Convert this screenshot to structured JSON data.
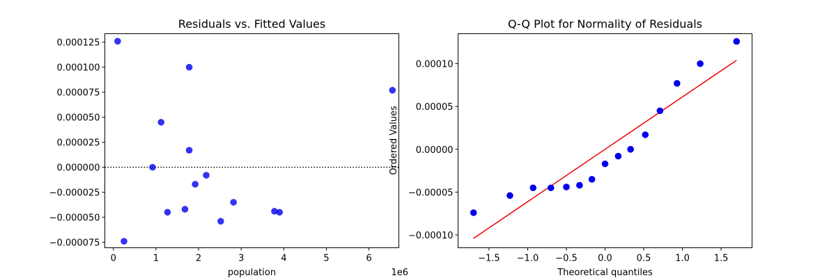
{
  "chart_data": [
    {
      "type": "scatter",
      "title": "Residuals vs. Fitted Values",
      "xlabel": "population",
      "ylabel": "",
      "x_offset_label": "1e6",
      "xlim": [
        -0.2,
        6.7
      ],
      "ylim": [
        -8.05e-05,
        0.0001335
      ],
      "xticks": [
        0,
        1,
        2,
        3,
        4,
        5,
        6
      ],
      "xtick_labels": [
        "0",
        "1",
        "2",
        "3",
        "4",
        "5",
        "6"
      ],
      "yticks": [
        -7.5e-05,
        -5e-05,
        -2.5e-05,
        0,
        2.5e-05,
        5e-05,
        7.5e-05,
        0.0001,
        0.000125
      ],
      "ytick_labels": [
        "−0.000075",
        "−0.000050",
        "−0.000025",
        "0.000000",
        "0.000025",
        "0.000050",
        "0.000075",
        "0.000100",
        "0.000125"
      ],
      "reference_line": {
        "y": 0,
        "style": "dotted",
        "color": "#000000"
      },
      "marker_color": "#0000ee",
      "points": [
        {
          "x": 0.1,
          "y": 0.000126
        },
        {
          "x": 0.25,
          "y": -7.4e-05
        },
        {
          "x": 0.92,
          "y": 0.0
        },
        {
          "x": 1.12,
          "y": 4.5e-05
        },
        {
          "x": 1.27,
          "y": -4.5e-05
        },
        {
          "x": 1.68,
          "y": -4.2e-05
        },
        {
          "x": 1.78,
          "y": 0.0001
        },
        {
          "x": 1.78,
          "y": 1.7e-05
        },
        {
          "x": 1.92,
          "y": -1.7e-05
        },
        {
          "x": 2.18,
          "y": -8e-06
        },
        {
          "x": 2.52,
          "y": -5.4e-05
        },
        {
          "x": 2.82,
          "y": -3.5e-05
        },
        {
          "x": 3.78,
          "y": -4.4e-05
        },
        {
          "x": 3.9,
          "y": -4.5e-05
        },
        {
          "x": 6.55,
          "y": 7.7e-05
        }
      ],
      "grid": false
    },
    {
      "type": "scatter",
      "title": "Q-Q Plot for Normality of Residuals",
      "xlabel": "Theoretical quantiles",
      "ylabel": "Ordered Values",
      "xlim": [
        -1.9,
        1.9
      ],
      "ylim": [
        -0.000115,
        0.000135
      ],
      "xticks": [
        -1.5,
        -1.0,
        -0.5,
        0.0,
        0.5,
        1.0,
        1.5
      ],
      "xtick_labels": [
        "−1.5",
        "−1.0",
        "−0.5",
        "0.0",
        "0.5",
        "1.0",
        "1.5"
      ],
      "yticks": [
        -0.0001,
        -5e-05,
        0,
        5e-05,
        0.0001
      ],
      "ytick_labels": [
        "−0.00010",
        "−0.00005",
        "0.00000",
        "0.00005",
        "0.00010"
      ],
      "marker_color": "#0000ee",
      "fit_line": {
        "x": [
          -1.7,
          1.7
        ],
        "y": [
          -0.000104,
          0.000104
        ],
        "color": "#ee0000"
      },
      "points": [
        {
          "x": -1.7,
          "y": -7.4e-05
        },
        {
          "x": -1.23,
          "y": -5.4e-05
        },
        {
          "x": -0.93,
          "y": -4.5e-05
        },
        {
          "x": -0.7,
          "y": -4.5e-05
        },
        {
          "x": -0.5,
          "y": -4.4e-05
        },
        {
          "x": -0.33,
          "y": -4.2e-05
        },
        {
          "x": -0.17,
          "y": -3.5e-05
        },
        {
          "x": 0.0,
          "y": -1.7e-05
        },
        {
          "x": 0.17,
          "y": -8e-06
        },
        {
          "x": 0.33,
          "y": 0.0
        },
        {
          "x": 0.52,
          "y": 1.7e-05
        },
        {
          "x": 0.71,
          "y": 4.5e-05
        },
        {
          "x": 0.93,
          "y": 7.7e-05
        },
        {
          "x": 1.23,
          "y": 0.0001
        },
        {
          "x": 1.7,
          "y": 0.000126
        }
      ],
      "grid": false
    }
  ]
}
